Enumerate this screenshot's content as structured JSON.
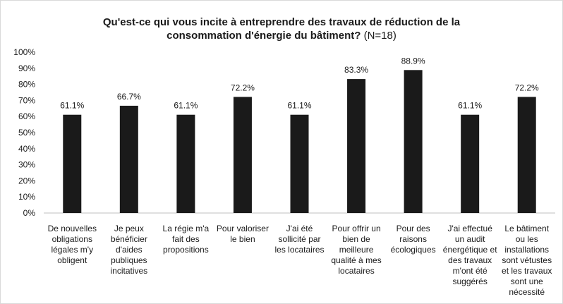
{
  "chart_data": {
    "type": "bar",
    "title_line1": "Qu'est-ce qui vous incite à entreprendre des travaux de réduction de la",
    "title_line2": "consommation d'énergie du bâtiment?",
    "title_suffix": "(N=18)",
    "xlabel": "",
    "ylabel": "",
    "ylim": [
      0,
      100
    ],
    "y_ticks": [
      "0%",
      "10%",
      "20%",
      "30%",
      "40%",
      "50%",
      "60%",
      "70%",
      "80%",
      "90%",
      "100%"
    ],
    "grid": false,
    "bar_color": "#1a1a1a",
    "categories": [
      [
        "De nouvelles",
        "obligations",
        "légales m'y",
        "obligent"
      ],
      [
        "Je peux",
        "bénéficier",
        "d'aides",
        "publiques",
        "incitatives"
      ],
      [
        "La régie m'a",
        "fait des",
        "propositions"
      ],
      [
        "Pour valoriser",
        "le bien"
      ],
      [
        "J'ai été",
        "sollicité par",
        "les locataires"
      ],
      [
        "Pour offrir un",
        "bien de",
        "meilleure",
        "qualité à mes",
        "locataires"
      ],
      [
        "Pour des",
        "raisons",
        "écologiques"
      ],
      [
        "J'ai effectué",
        "un audit",
        "énergétique et",
        "des travaux",
        "m'ont été",
        "suggérés"
      ],
      [
        "Le bâtiment",
        "ou les",
        "installations",
        "sont vétustes",
        "et les travaux",
        "sont une",
        "nécessité"
      ]
    ],
    "values": [
      61.1,
      66.7,
      61.1,
      72.2,
      61.1,
      83.3,
      88.9,
      61.1,
      72.2
    ],
    "value_labels": [
      "61.1%",
      "66.7%",
      "61.1%",
      "72.2%",
      "61.1%",
      "83.3%",
      "88.9%",
      "61.1%",
      "72.2%"
    ]
  }
}
